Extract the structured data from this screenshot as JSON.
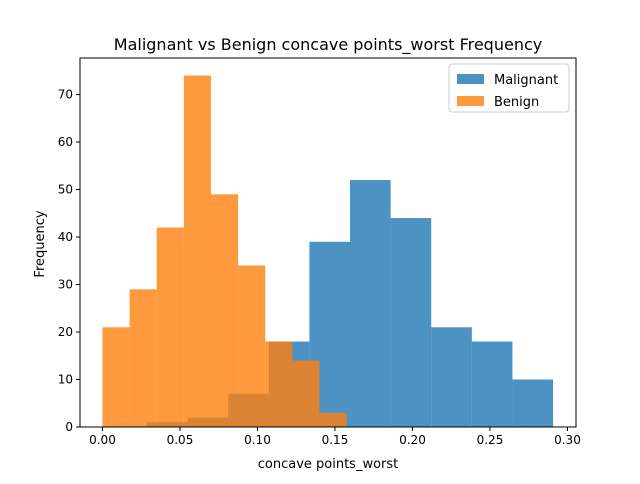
{
  "chart_data": {
    "type": "bar",
    "title": "Malignant vs Benign concave points_worst Frequency",
    "xlabel": "concave points_worst",
    "ylabel": "Frequency",
    "xlim": [
      -0.0145,
      0.3055
    ],
    "ylim": [
      0,
      77.7
    ],
    "xticks": [
      0.0,
      0.05,
      0.1,
      0.15,
      0.2,
      0.25,
      0.3
    ],
    "xtick_labels": [
      "0.00",
      "0.05",
      "0.10",
      "0.15",
      "0.20",
      "0.25",
      "0.30"
    ],
    "yticks": [
      0,
      10,
      20,
      30,
      40,
      50,
      60,
      70
    ],
    "ytick_labels": [
      "0",
      "10",
      "20",
      "30",
      "40",
      "50",
      "60",
      "70"
    ],
    "legend_position": "top-right",
    "series": [
      {
        "name": "Malignant",
        "color": "#1f77b4",
        "opacity": 0.8,
        "bin_edges": [
          0.0287,
          0.0549,
          0.0811,
          0.1073,
          0.1335,
          0.1597,
          0.1859,
          0.2121,
          0.2383,
          0.2645,
          0.2907
        ],
        "counts": [
          1,
          2,
          7,
          18,
          39,
          52,
          44,
          21,
          18,
          10
        ]
      },
      {
        "name": "Benign",
        "color": "#ff7f0e",
        "opacity": 0.8,
        "bin_edges": [
          0.0,
          0.0175,
          0.035,
          0.0525,
          0.07,
          0.0875,
          0.105,
          0.1225,
          0.14,
          0.1575,
          0.175
        ],
        "counts": [
          21,
          29,
          42,
          74,
          49,
          34,
          18,
          14,
          3,
          0
        ]
      }
    ]
  }
}
